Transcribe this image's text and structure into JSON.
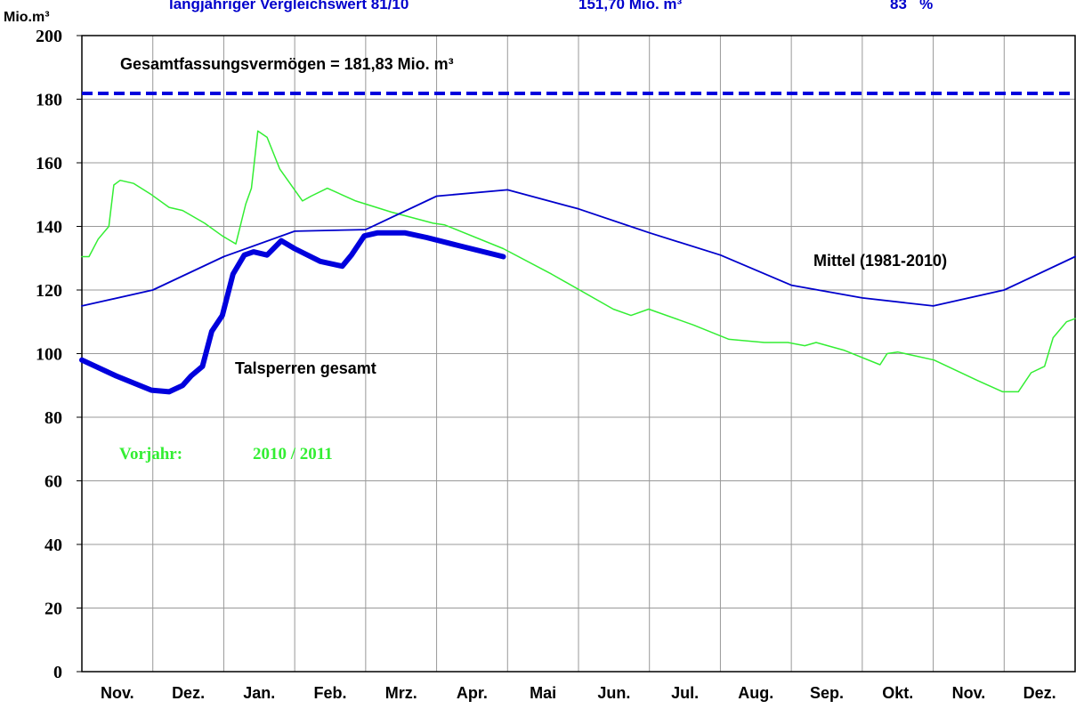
{
  "chart_data": {
    "type": "line",
    "header": [
      "langjähriger Vergleichswert 81/10",
      "151,70 Mio. m³",
      "83   %"
    ],
    "y_label": "Mio.m³",
    "categories": [
      "Nov.",
      "Dez.",
      "Jan.",
      "Feb.",
      "Mrz.",
      "Apr.",
      "Mai",
      "Jun.",
      "Jul.",
      "Aug.",
      "Sep.",
      "Okt.",
      "Nov.",
      "Dez."
    ],
    "xlim": [
      0,
      14
    ],
    "ylim": [
      0,
      200
    ],
    "yticks": [
      0,
      20,
      40,
      60,
      80,
      100,
      120,
      140,
      160,
      180,
      200
    ],
    "grid": true,
    "reference_line": {
      "label": "Gesamtfassungsvermögen = 181,83 Mio. m³",
      "value": 181.83,
      "color": "#0000dd"
    },
    "series": [
      {
        "name": "Talsperren gesamt",
        "color": "#0000dd",
        "x": [
          0,
          0.48,
          0.98,
          1.23,
          1.42,
          1.54,
          1.7,
          1.83,
          1.98,
          2.13,
          2.29,
          2.42,
          2.61,
          2.81,
          3.0,
          3.36,
          3.67,
          3.8,
          3.98,
          4.17,
          4.55,
          4.86,
          5.3,
          5.94
        ],
        "values": [
          98,
          93,
          88.5,
          88,
          90,
          93,
          96,
          107,
          112,
          125,
          131,
          132,
          131,
          135.5,
          133,
          129,
          127.5,
          131,
          137,
          138,
          138,
          136.5,
          134,
          130.5
        ]
      },
      {
        "name": "Mittel (1981-2010)",
        "color": "#0000cc",
        "x": [
          0,
          1,
          2,
          3,
          4,
          5,
          6,
          7,
          8,
          9,
          10,
          11,
          12,
          13,
          14
        ],
        "values": [
          115,
          120,
          130.5,
          138.5,
          139,
          149.5,
          151.5,
          145.5,
          138,
          131,
          121.5,
          117.5,
          115,
          120,
          130.5
        ]
      },
      {
        "name": "Vorjahr:",
        "color": "#33ee33",
        "x": [
          0,
          0.1,
          0.23,
          0.38,
          0.45,
          0.54,
          0.73,
          0.98,
          1.23,
          1.42,
          1.73,
          1.98,
          2.17,
          2.31,
          2.39,
          2.48,
          2.61,
          2.79,
          3.11,
          3.23,
          3.46,
          3.86,
          4.36,
          4.95,
          5.11,
          5.94,
          6.62,
          7.49,
          7.74,
          7.99,
          8.62,
          9.12,
          9.62,
          9.95,
          10.19,
          10.35,
          10.75,
          11.25,
          11.35,
          11.5,
          12.01,
          12.63,
          12.98,
          13.2,
          13.38,
          13.57,
          13.69,
          13.88,
          14
        ],
        "values": [
          130.5,
          130.5,
          136,
          140,
          153,
          154.5,
          153.5,
          150,
          146,
          145,
          141,
          137,
          134.5,
          147,
          152,
          170,
          168,
          158,
          148,
          149.5,
          152,
          148,
          144.5,
          141,
          140.5,
          133,
          125,
          114,
          112,
          114,
          109,
          104.5,
          103.5,
          103.5,
          102.5,
          103.5,
          101,
          96.5,
          100,
          100.5,
          98,
          91.5,
          88,
          88,
          94,
          96,
          105,
          110,
          111
        ]
      }
    ],
    "annotations": [
      "2010 / 2011"
    ]
  }
}
